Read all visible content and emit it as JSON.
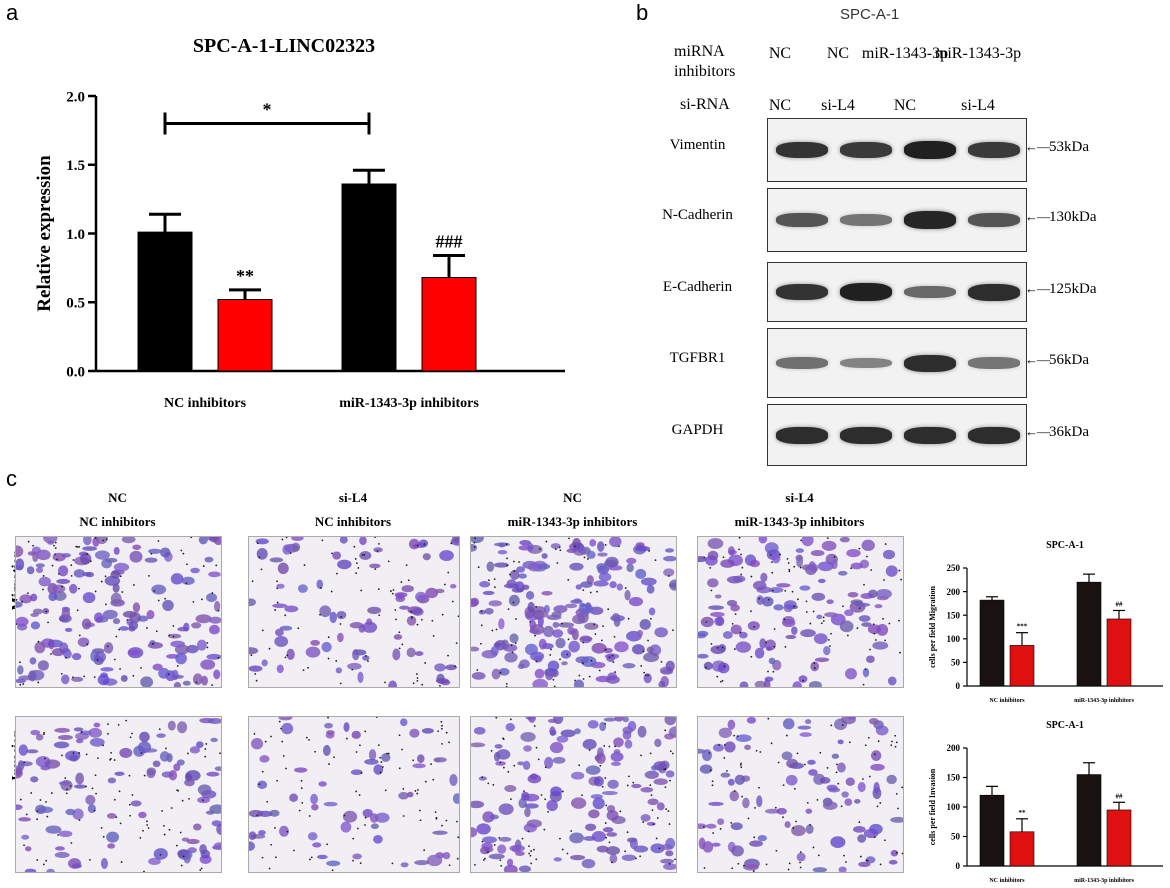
{
  "panels": {
    "a": "a",
    "b": "b",
    "c": "c"
  },
  "chart_data": [
    {
      "type": "bar",
      "title": "SPC-A-1-LINC02323",
      "xlabel": "",
      "ylabel": "Relative expression",
      "categories": [
        "NC inhibitors",
        "miR-1343-3p inhibitors"
      ],
      "series": [
        {
          "color": "#000000",
          "values": [
            1.01,
            1.36
          ],
          "errors": [
            0.13,
            0.1
          ]
        },
        {
          "color": "#ff0000",
          "values": [
            0.52,
            0.68
          ],
          "errors": [
            0.07,
            0.16
          ]
        }
      ],
      "annotations": [
        "**",
        "###",
        "*"
      ],
      "ylim": [
        0.0,
        2.0
      ],
      "yticks": [
        "0.0",
        "0.5",
        "1.0",
        "1.5",
        "2.0"
      ],
      "grid": false
    },
    {
      "type": "bar",
      "title": "SPC-A-1",
      "ylabel": "cells per field Migration",
      "categories": [
        "NC inhibitors",
        "miR-1343-3p inhibitors"
      ],
      "series": [
        {
          "color": "#1a1210",
          "values": [
            182,
            220
          ],
          "errors": [
            7,
            17
          ]
        },
        {
          "color": "#e01010",
          "values": [
            86,
            142
          ],
          "errors": [
            27,
            18
          ]
        }
      ],
      "annotations": [
        "***",
        "##"
      ],
      "ylim": [
        0,
        250
      ],
      "yticks": [
        "0",
        "50",
        "100",
        "150",
        "200",
        "250"
      ]
    },
    {
      "type": "bar",
      "title": "SPC-A-1",
      "ylabel": "cells per field Invasion",
      "categories": [
        "NC inhibitors",
        "miR-1343-3p inhibitors"
      ],
      "series": [
        {
          "color": "#1a1210",
          "values": [
            120,
            155
          ],
          "errors": [
            15,
            20
          ]
        },
        {
          "color": "#e01010",
          "values": [
            58,
            95
          ],
          "errors": [
            22,
            13
          ]
        }
      ],
      "annotations": [
        "**",
        "##"
      ],
      "ylim": [
        0,
        200
      ],
      "yticks": [
        "0",
        "50",
        "100",
        "150",
        "200"
      ]
    }
  ],
  "western": {
    "cell_line": "SPC-A-1",
    "row1_label": "miRNA inhibitors",
    "row2_label": "si-RNA",
    "lanes_mirna": [
      "NC",
      "NC",
      "miR-1343-3p",
      "miR-1343-3p"
    ],
    "lanes_sirna": [
      "NC",
      "si-L4",
      "NC",
      "si-L4"
    ],
    "proteins": [
      {
        "name": "Vimentin",
        "kda": "53kDa",
        "intensity": [
          0.85,
          0.8,
          1.0,
          0.8
        ]
      },
      {
        "name": "N-Cadherin",
        "kda": "130kDa",
        "intensity": [
          0.6,
          0.35,
          0.95,
          0.6
        ]
      },
      {
        "name": "E-Cadherin",
        "kda": "125kDa",
        "intensity": [
          0.85,
          1.0,
          0.45,
          0.9
        ]
      },
      {
        "name": "TGFBR1",
        "kda": "56kDa",
        "intensity": [
          0.4,
          0.25,
          0.9,
          0.35
        ]
      },
      {
        "name": "GAPDH",
        "kda": "36kDa",
        "intensity": [
          0.9,
          0.9,
          0.9,
          0.9
        ]
      }
    ]
  },
  "micrographs": {
    "columns": [
      {
        "top": "NC",
        "bottom": "NC inhibitors"
      },
      {
        "top": "si-L4",
        "bottom": "NC inhibitors"
      },
      {
        "top": "NC",
        "bottom": "miR-1343-3p inhibitors"
      },
      {
        "top": "si-L4",
        "bottom": "miR-1343-3p inhibitors"
      }
    ],
    "rows": [
      "Migration",
      "Invasion"
    ],
    "density": [
      [
        0.9,
        0.45,
        1.0,
        0.7
      ],
      [
        0.6,
        0.35,
        0.75,
        0.5
      ]
    ]
  }
}
